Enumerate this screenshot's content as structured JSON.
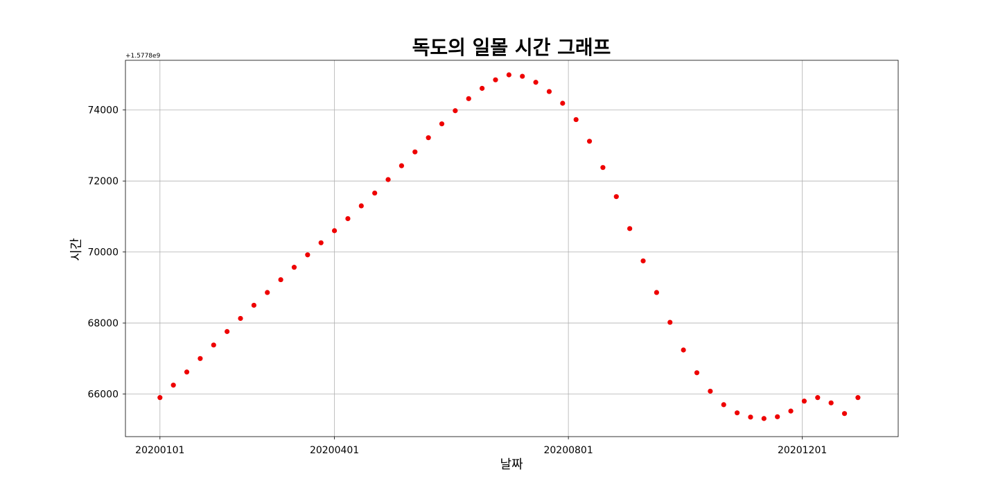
{
  "chart_data": {
    "type": "scatter",
    "title": "독도의 일몰 시간 그래프",
    "xlabel": "날짜",
    "ylabel": "시간",
    "y_offset_label": "+1.5778e9",
    "x_tick_labels": [
      "20200101",
      "20200401",
      "20200801",
      "20201201"
    ],
    "x_tick_days": [
      0,
      91,
      213,
      335
    ],
    "y_ticks": [
      66000,
      68000,
      70000,
      72000,
      74000
    ],
    "xlim": [
      -18,
      385
    ],
    "ylim": [
      64800,
      75400
    ],
    "grid": true,
    "marker_color": "#ee0000",
    "series": [
      {
        "x": [
          "20200101",
          "20200108",
          "20200115",
          "20200122",
          "20200129",
          "20200205",
          "20200212",
          "20200219",
          "20200226",
          "20200304",
          "20200311",
          "20200318",
          "20200325",
          "20200401",
          "20200408",
          "20200415",
          "20200422",
          "20200429",
          "20200506",
          "20200513",
          "20200520",
          "20200527",
          "20200603",
          "20200610",
          "20200617",
          "20200624",
          "20200701",
          "20200708",
          "20200715",
          "20200722",
          "20200729",
          "20200805",
          "20200812",
          "20200819",
          "20200826",
          "20200902",
          "20200909",
          "20200916",
          "20200923",
          "20200930",
          "20201007",
          "20201014",
          "20201021",
          "20201028",
          "20201104",
          "20201111",
          "20201118",
          "20201125",
          "20201202",
          "20201209",
          "20201216",
          "20201223",
          "20201230"
        ],
        "y": [
          65900,
          66250,
          66620,
          67000,
          67380,
          67760,
          68130,
          68500,
          68860,
          69220,
          69570,
          69920,
          70260,
          70600,
          70940,
          71300,
          71660,
          72040,
          72430,
          72820,
          73220,
          73610,
          73980,
          74320,
          74610,
          74850,
          74990,
          74950,
          74780,
          74520,
          74190,
          73730,
          73120,
          72380,
          71560,
          70660,
          69750,
          68860,
          68020,
          67240,
          66600,
          66080,
          65700,
          65470,
          65350,
          65310,
          65360,
          65520,
          65800,
          65900,
          65750,
          65450,
          65900
        ]
      }
    ]
  }
}
